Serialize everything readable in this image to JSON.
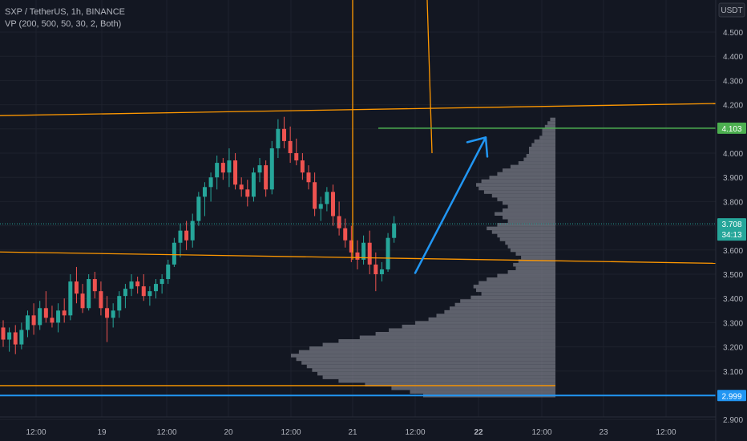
{
  "header": {
    "symbol_line": "SXP / TetherUS, 1h, BINANCE",
    "indicator_line": "VP (200, 500, 50, 30, 2, Both)"
  },
  "chart_data": {
    "type": "candlestick",
    "symbol": "SXP / TetherUS",
    "timeframe": "1h",
    "exchange": "BINANCE",
    "currency": "USDT",
    "ylim": [
      2.98,
      4.62
    ],
    "y_ticks": [
      "4.500",
      "4.400",
      "4.300",
      "4.200",
      "4.100",
      "4.000",
      "3.900",
      "3.800",
      "3.700",
      "3.600",
      "3.500",
      "3.400",
      "3.300",
      "3.200",
      "3.100",
      "2.900"
    ],
    "x_ticks": [
      "12:00",
      "19",
      "12:00",
      "20",
      "12:00",
      "21",
      "12:00",
      "22",
      "12:00",
      "23",
      "12:00"
    ],
    "x_ticks_bold": [
      "22"
    ],
    "last_price": "3.708",
    "countdown": "34:13",
    "candles": [
      {
        "o": 3.28,
        "h": 3.31,
        "l": 3.2,
        "c": 3.23
      },
      {
        "o": 3.23,
        "h": 3.28,
        "l": 3.18,
        "c": 3.26
      },
      {
        "o": 3.26,
        "h": 3.29,
        "l": 3.17,
        "c": 3.21
      },
      {
        "o": 3.21,
        "h": 3.3,
        "l": 3.19,
        "c": 3.27
      },
      {
        "o": 3.27,
        "h": 3.35,
        "l": 3.24,
        "c": 3.33
      },
      {
        "o": 3.33,
        "h": 3.38,
        "l": 3.25,
        "c": 3.29
      },
      {
        "o": 3.29,
        "h": 3.39,
        "l": 3.27,
        "c": 3.36
      },
      {
        "o": 3.36,
        "h": 3.43,
        "l": 3.3,
        "c": 3.32
      },
      {
        "o": 3.32,
        "h": 3.37,
        "l": 3.28,
        "c": 3.3
      },
      {
        "o": 3.3,
        "h": 3.38,
        "l": 3.26,
        "c": 3.35
      },
      {
        "o": 3.35,
        "h": 3.4,
        "l": 3.3,
        "c": 3.33
      },
      {
        "o": 3.33,
        "h": 3.5,
        "l": 3.31,
        "c": 3.47
      },
      {
        "o": 3.47,
        "h": 3.53,
        "l": 3.38,
        "c": 3.42
      },
      {
        "o": 3.42,
        "h": 3.46,
        "l": 3.34,
        "c": 3.36
      },
      {
        "o": 3.36,
        "h": 3.5,
        "l": 3.35,
        "c": 3.48
      },
      {
        "o": 3.48,
        "h": 3.51,
        "l": 3.4,
        "c": 3.43
      },
      {
        "o": 3.43,
        "h": 3.47,
        "l": 3.33,
        "c": 3.36
      },
      {
        "o": 3.36,
        "h": 3.41,
        "l": 3.22,
        "c": 3.32
      },
      {
        "o": 3.32,
        "h": 3.38,
        "l": 3.28,
        "c": 3.35
      },
      {
        "o": 3.35,
        "h": 3.43,
        "l": 3.32,
        "c": 3.41
      },
      {
        "o": 3.41,
        "h": 3.46,
        "l": 3.36,
        "c": 3.44
      },
      {
        "o": 3.44,
        "h": 3.5,
        "l": 3.41,
        "c": 3.47
      },
      {
        "o": 3.47,
        "h": 3.49,
        "l": 3.42,
        "c": 3.45
      },
      {
        "o": 3.45,
        "h": 3.5,
        "l": 3.39,
        "c": 3.41
      },
      {
        "o": 3.41,
        "h": 3.45,
        "l": 3.37,
        "c": 3.43
      },
      {
        "o": 3.43,
        "h": 3.48,
        "l": 3.4,
        "c": 3.46
      },
      {
        "o": 3.46,
        "h": 3.5,
        "l": 3.42,
        "c": 3.48
      },
      {
        "o": 3.48,
        "h": 3.56,
        "l": 3.46,
        "c": 3.54
      },
      {
        "o": 3.54,
        "h": 3.65,
        "l": 3.53,
        "c": 3.63
      },
      {
        "o": 3.63,
        "h": 3.71,
        "l": 3.57,
        "c": 3.68
      },
      {
        "o": 3.68,
        "h": 3.72,
        "l": 3.6,
        "c": 3.64
      },
      {
        "o": 3.64,
        "h": 3.75,
        "l": 3.61,
        "c": 3.72
      },
      {
        "o": 3.72,
        "h": 3.84,
        "l": 3.7,
        "c": 3.82
      },
      {
        "o": 3.82,
        "h": 3.88,
        "l": 3.74,
        "c": 3.86
      },
      {
        "o": 3.86,
        "h": 3.92,
        "l": 3.8,
        "c": 3.9
      },
      {
        "o": 3.9,
        "h": 3.99,
        "l": 3.85,
        "c": 3.96
      },
      {
        "o": 3.96,
        "h": 3.98,
        "l": 3.89,
        "c": 3.92
      },
      {
        "o": 3.92,
        "h": 4.02,
        "l": 3.86,
        "c": 3.97
      },
      {
        "o": 3.97,
        "h": 4.0,
        "l": 3.85,
        "c": 3.87
      },
      {
        "o": 3.87,
        "h": 3.9,
        "l": 3.82,
        "c": 3.85
      },
      {
        "o": 3.85,
        "h": 3.89,
        "l": 3.78,
        "c": 3.82
      },
      {
        "o": 3.82,
        "h": 3.94,
        "l": 3.8,
        "c": 3.92
      },
      {
        "o": 3.92,
        "h": 3.98,
        "l": 3.88,
        "c": 3.95
      },
      {
        "o": 3.95,
        "h": 3.97,
        "l": 3.82,
        "c": 3.85
      },
      {
        "o": 3.85,
        "h": 4.05,
        "l": 3.83,
        "c": 4.02
      },
      {
        "o": 4.02,
        "h": 4.14,
        "l": 3.98,
        "c": 4.1
      },
      {
        "o": 4.1,
        "h": 4.15,
        "l": 4.02,
        "c": 4.05
      },
      {
        "o": 4.05,
        "h": 4.11,
        "l": 3.96,
        "c": 4.0
      },
      {
        "o": 4.0,
        "h": 4.06,
        "l": 3.95,
        "c": 3.97
      },
      {
        "o": 3.97,
        "h": 4.0,
        "l": 3.89,
        "c": 3.92
      },
      {
        "o": 3.92,
        "h": 3.95,
        "l": 3.85,
        "c": 3.88
      },
      {
        "o": 3.88,
        "h": 3.92,
        "l": 3.74,
        "c": 3.77
      },
      {
        "o": 3.77,
        "h": 3.82,
        "l": 3.72,
        "c": 3.79
      },
      {
        "o": 3.79,
        "h": 3.86,
        "l": 3.76,
        "c": 3.84
      },
      {
        "o": 3.84,
        "h": 3.87,
        "l": 3.7,
        "c": 3.74
      },
      {
        "o": 3.74,
        "h": 3.8,
        "l": 3.66,
        "c": 3.69
      },
      {
        "o": 3.69,
        "h": 3.73,
        "l": 3.61,
        "c": 3.64
      },
      {
        "o": 3.64,
        "h": 3.7,
        "l": 3.55,
        "c": 3.59
      },
      {
        "o": 3.59,
        "h": 3.64,
        "l": 3.52,
        "c": 3.56
      },
      {
        "o": 3.56,
        "h": 3.66,
        "l": 3.54,
        "c": 3.63
      },
      {
        "o": 3.63,
        "h": 3.68,
        "l": 3.5,
        "c": 3.54
      },
      {
        "o": 3.54,
        "h": 3.59,
        "l": 3.43,
        "c": 3.5
      },
      {
        "o": 3.5,
        "h": 3.55,
        "l": 3.47,
        "c": 3.52
      },
      {
        "o": 3.52,
        "h": 3.67,
        "l": 3.51,
        "c": 3.65
      },
      {
        "o": 3.65,
        "h": 3.74,
        "l": 3.63,
        "c": 3.71
      }
    ],
    "volume_profile": {
      "bins": [
        {
          "p": 4.14,
          "v": 0.02
        },
        {
          "p": 4.125,
          "v": 0.03
        },
        {
          "p": 4.11,
          "v": 0.04
        },
        {
          "p": 4.095,
          "v": 0.05
        },
        {
          "p": 4.08,
          "v": 0.05
        },
        {
          "p": 4.065,
          "v": 0.06
        },
        {
          "p": 4.05,
          "v": 0.08
        },
        {
          "p": 4.035,
          "v": 0.09
        },
        {
          "p": 4.02,
          "v": 0.1
        },
        {
          "p": 4.005,
          "v": 0.1
        },
        {
          "p": 3.99,
          "v": 0.11
        },
        {
          "p": 3.975,
          "v": 0.12
        },
        {
          "p": 3.96,
          "v": 0.14
        },
        {
          "p": 3.945,
          "v": 0.17
        },
        {
          "p": 3.93,
          "v": 0.2
        },
        {
          "p": 3.915,
          "v": 0.22
        },
        {
          "p": 3.9,
          "v": 0.25
        },
        {
          "p": 3.885,
          "v": 0.28
        },
        {
          "p": 3.87,
          "v": 0.3
        },
        {
          "p": 3.855,
          "v": 0.29
        },
        {
          "p": 3.84,
          "v": 0.27
        },
        {
          "p": 3.825,
          "v": 0.24
        },
        {
          "p": 3.81,
          "v": 0.22
        },
        {
          "p": 3.795,
          "v": 0.2
        },
        {
          "p": 3.78,
          "v": 0.18
        },
        {
          "p": 3.765,
          "v": 0.2
        },
        {
          "p": 3.75,
          "v": 0.23
        },
        {
          "p": 3.735,
          "v": 0.2
        },
        {
          "p": 3.72,
          "v": 0.18
        },
        {
          "p": 3.705,
          "v": 0.22
        },
        {
          "p": 3.69,
          "v": 0.26
        },
        {
          "p": 3.675,
          "v": 0.24
        },
        {
          "p": 3.66,
          "v": 0.22
        },
        {
          "p": 3.645,
          "v": 0.21
        },
        {
          "p": 3.63,
          "v": 0.19
        },
        {
          "p": 3.615,
          "v": 0.18
        },
        {
          "p": 3.6,
          "v": 0.17
        },
        {
          "p": 3.585,
          "v": 0.15
        },
        {
          "p": 3.57,
          "v": 0.13
        },
        {
          "p": 3.555,
          "v": 0.14
        },
        {
          "p": 3.54,
          "v": 0.16
        },
        {
          "p": 3.525,
          "v": 0.15
        },
        {
          "p": 3.51,
          "v": 0.18
        },
        {
          "p": 3.495,
          "v": 0.22
        },
        {
          "p": 3.48,
          "v": 0.26
        },
        {
          "p": 3.465,
          "v": 0.29
        },
        {
          "p": 3.45,
          "v": 0.31
        },
        {
          "p": 3.435,
          "v": 0.3
        },
        {
          "p": 3.42,
          "v": 0.28
        },
        {
          "p": 3.405,
          "v": 0.32
        },
        {
          "p": 3.39,
          "v": 0.36
        },
        {
          "p": 3.375,
          "v": 0.38
        },
        {
          "p": 3.36,
          "v": 0.4
        },
        {
          "p": 3.345,
          "v": 0.42
        },
        {
          "p": 3.33,
          "v": 0.45
        },
        {
          "p": 3.315,
          "v": 0.48
        },
        {
          "p": 3.3,
          "v": 0.53
        },
        {
          "p": 3.285,
          "v": 0.58
        },
        {
          "p": 3.27,
          "v": 0.63
        },
        {
          "p": 3.255,
          "v": 0.68
        },
        {
          "p": 3.24,
          "v": 0.74
        },
        {
          "p": 3.225,
          "v": 0.82
        },
        {
          "p": 3.21,
          "v": 0.88
        },
        {
          "p": 3.195,
          "v": 0.93
        },
        {
          "p": 3.18,
          "v": 0.97
        },
        {
          "p": 3.165,
          "v": 1.0
        },
        {
          "p": 3.15,
          "v": 0.98
        },
        {
          "p": 3.135,
          "v": 0.96
        },
        {
          "p": 3.12,
          "v": 0.94
        },
        {
          "p": 3.105,
          "v": 0.92
        },
        {
          "p": 3.09,
          "v": 0.9
        },
        {
          "p": 3.075,
          "v": 0.88
        },
        {
          "p": 3.06,
          "v": 0.82
        },
        {
          "p": 3.045,
          "v": 0.72
        },
        {
          "p": 3.03,
          "v": 0.62
        },
        {
          "p": 3.015,
          "v": 0.55
        },
        {
          "p": 3.0,
          "v": 0.5
        }
      ]
    },
    "annotations": {
      "upper_channel": {
        "from": {
          "price": 4.155
        },
        "to": {
          "price": 4.205
        },
        "color": "#ff9800"
      },
      "lower_channel": {
        "from": {
          "price": 3.592
        },
        "to": {
          "price": 3.545
        },
        "color": "#ff9800"
      },
      "level_4103": {
        "price": 4.103,
        "label": "4.103",
        "color": "#4caf50"
      },
      "level_2999": {
        "price": 2.999,
        "label": "2.999",
        "color": "#2196f3"
      },
      "level_orange_low": {
        "price": 3.04,
        "color": "#ff9800"
      },
      "arrow": {
        "from_price": 3.505,
        "to_price": 4.065,
        "color": "#2196f3"
      }
    },
    "colors": {
      "up": "#26a69a",
      "down": "#ef5350",
      "profile": "#787b86",
      "last_price": "#26a69a"
    }
  }
}
